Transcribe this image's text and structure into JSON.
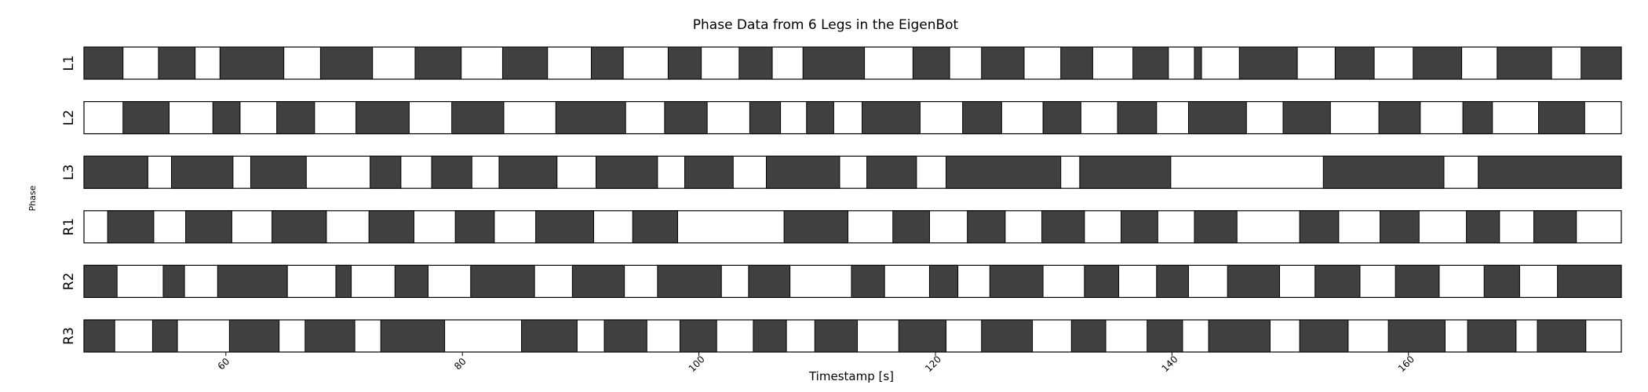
{
  "chart_data": {
    "type": "broken-barh",
    "title": "Phase Data from 6 Legs in the EigenBot",
    "xlabel": "Timestamp [s]",
    "ylabel": "Phase",
    "xlim": [
      48,
      178
    ],
    "xticks": [
      60,
      80,
      100,
      120,
      140,
      160
    ],
    "tick_rotation": 45,
    "colors": {
      "stance": "#404040",
      "swing": "#ffffff",
      "edge": "#000000"
    },
    "rows": [
      {
        "name": "L1",
        "bars": [
          [
            48,
            51.3
          ],
          [
            54.3,
            57.4
          ],
          [
            59.5,
            64.9
          ],
          [
            68,
            72.4
          ],
          [
            76,
            79.9
          ],
          [
            83.4,
            87.2
          ],
          [
            90.9,
            93.6
          ],
          [
            97.4,
            100.2
          ],
          [
            103.4,
            106.2
          ],
          [
            108.8,
            114
          ],
          [
            118.1,
            121.2
          ],
          [
            123.9,
            127.5
          ],
          [
            130.6,
            133.3
          ],
          [
            136.7,
            139.7
          ],
          [
            141.9,
            142.5
          ],
          [
            145.7,
            150.6
          ],
          [
            153.8,
            157.1
          ],
          [
            160.4,
            164.5
          ],
          [
            167.5,
            172.1
          ],
          [
            174.6,
            178
          ]
        ]
      },
      {
        "name": "L2",
        "bars": [
          [
            51.3,
            55.2
          ],
          [
            58.9,
            61.2
          ],
          [
            64.3,
            67.5
          ],
          [
            71,
            75.5
          ],
          [
            79.1,
            83.5
          ],
          [
            87.9,
            93.8
          ],
          [
            97.1,
            100.7
          ],
          [
            104.3,
            106.9
          ],
          [
            109.1,
            111.4
          ],
          [
            113.8,
            118.7
          ],
          [
            122.3,
            125.6
          ],
          [
            129.1,
            132.3
          ],
          [
            135.4,
            138.7
          ],
          [
            141.4,
            146.3
          ],
          [
            149.4,
            153.4
          ],
          [
            157.5,
            161
          ],
          [
            164.6,
            167.1
          ],
          [
            171,
            174.9
          ]
        ]
      },
      {
        "name": "L3",
        "bars": [
          [
            48,
            53.4
          ],
          [
            55.4,
            60.6
          ],
          [
            62.1,
            66.8
          ],
          [
            72.2,
            74.8
          ],
          [
            77.4,
            80.8
          ],
          [
            83.1,
            88
          ],
          [
            91.3,
            96.5
          ],
          [
            98.8,
            102.9
          ],
          [
            105.7,
            111.9
          ],
          [
            114.2,
            118.4
          ],
          [
            120.9,
            130.6
          ],
          [
            132.2,
            139.9
          ],
          [
            152.8,
            163
          ],
          [
            165.9,
            178
          ]
        ]
      },
      {
        "name": "R1",
        "bars": [
          [
            50,
            53.9
          ],
          [
            56.6,
            60.5
          ],
          [
            63.9,
            68.5
          ],
          [
            72.1,
            75.9
          ],
          [
            79.4,
            82.7
          ],
          [
            86.2,
            91.1
          ],
          [
            94.4,
            98.2
          ],
          [
            107.2,
            112.6
          ],
          [
            116.4,
            119.5
          ],
          [
            122.7,
            125.9
          ],
          [
            129,
            132.6
          ],
          [
            135.7,
            138.8
          ],
          [
            141.9,
            145.5
          ],
          [
            150.8,
            154.1
          ],
          [
            157.6,
            160.9
          ],
          [
            164.9,
            167.7
          ],
          [
            170.6,
            174.2
          ]
        ]
      },
      {
        "name": "R2",
        "bars": [
          [
            48,
            50.8
          ],
          [
            54.7,
            56.5
          ],
          [
            59.3,
            65.2
          ],
          [
            69.3,
            70.6
          ],
          [
            74.3,
            77.1
          ],
          [
            80.7,
            86.1
          ],
          [
            89.3,
            93.7
          ],
          [
            96.5,
            101.9
          ],
          [
            104.2,
            107.7
          ],
          [
            112.9,
            115.7
          ],
          [
            119.5,
            121.9
          ],
          [
            124.6,
            129.1
          ],
          [
            132.6,
            135.5
          ],
          [
            138.7,
            141.4
          ],
          [
            144.7,
            149.1
          ],
          [
            152.1,
            155.9
          ],
          [
            158.9,
            162.6
          ],
          [
            166.4,
            169.4
          ],
          [
            172.6,
            178
          ]
        ]
      },
      {
        "name": "R3",
        "bars": [
          [
            48,
            50.6
          ],
          [
            53.8,
            55.9
          ],
          [
            60.3,
            64.5
          ],
          [
            66.7,
            70.9
          ],
          [
            73.1,
            78.5
          ],
          [
            85,
            89.7
          ],
          [
            92,
            95.6
          ],
          [
            98.4,
            101.5
          ],
          [
            104.6,
            107.4
          ],
          [
            109.8,
            113.4
          ],
          [
            116.9,
            120.9
          ],
          [
            123.9,
            128.2
          ],
          [
            131.5,
            134.4
          ],
          [
            137.9,
            140.9
          ],
          [
            143.1,
            148.3
          ],
          [
            150.8,
            154.9
          ],
          [
            158.3,
            163.1
          ],
          [
            165,
            169.1
          ],
          [
            170.9,
            175
          ]
        ]
      }
    ]
  }
}
